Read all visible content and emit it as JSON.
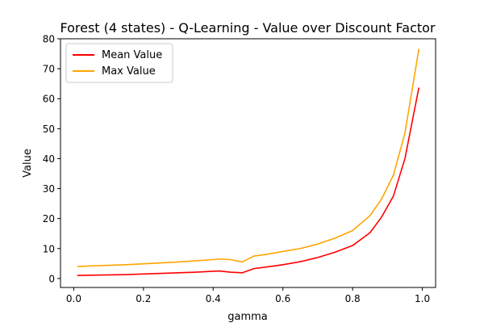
{
  "chart_data": {
    "type": "line",
    "title": "Forest (4 states) - Q-Learning - Value over Discount Factor",
    "xlabel": "gamma",
    "ylabel": "Value",
    "xlim": [
      -0.038,
      1.038
    ],
    "ylim": [
      -3.0,
      80.0
    ],
    "xticks": [
      0.0,
      0.2,
      0.4,
      0.6,
      0.8,
      1.0
    ],
    "xtick_labels": [
      "0.0",
      "0.2",
      "0.4",
      "0.6",
      "0.8",
      "1.0"
    ],
    "yticks": [
      0,
      10,
      20,
      30,
      40,
      50,
      60,
      70,
      80
    ],
    "ytick_labels": [
      "0",
      "10",
      "20",
      "30",
      "40",
      "50",
      "60",
      "70",
      "80"
    ],
    "grid": false,
    "legend_position": "top-left",
    "x": [
      0.01,
      0.05,
      0.1,
      0.15,
      0.2,
      0.25,
      0.3,
      0.35,
      0.4,
      0.417,
      0.45,
      0.483,
      0.517,
      0.55,
      0.6,
      0.65,
      0.7,
      0.75,
      0.8,
      0.85,
      0.883,
      0.917,
      0.95,
      0.99
    ],
    "series": [
      {
        "name": "Mean Value",
        "color": "#ff0000",
        "values": [
          1.0,
          1.1,
          1.2,
          1.3,
          1.5,
          1.7,
          1.9,
          2.1,
          2.4,
          2.5,
          2.1,
          1.9,
          3.3,
          3.8,
          4.6,
          5.6,
          7.0,
          8.8,
          11.0,
          15.3,
          20.5,
          27.5,
          40.0,
          63.7
        ]
      },
      {
        "name": "Max Value",
        "color": "#ffa500",
        "values": [
          4.0,
          4.2,
          4.4,
          4.6,
          4.9,
          5.2,
          5.5,
          5.9,
          6.3,
          6.5,
          6.3,
          5.5,
          7.5,
          8.0,
          9.0,
          10.0,
          11.5,
          13.5,
          16.0,
          21.0,
          26.5,
          34.5,
          48.5,
          76.6
        ]
      }
    ]
  }
}
